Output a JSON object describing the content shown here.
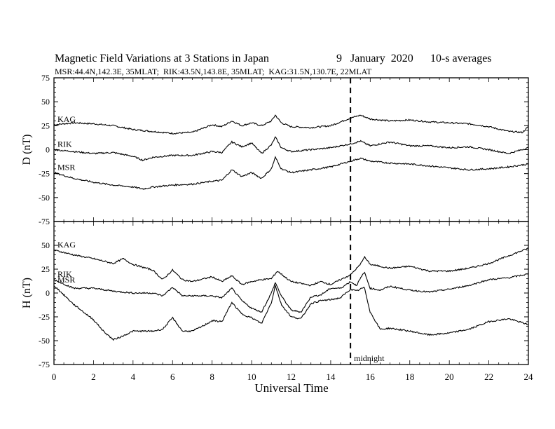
{
  "chart_data": {
    "type": "line",
    "title": "Magnetic Field Variations at 3 Stations in Japan",
    "date": "9   January  2020",
    "averaging": "10-s averages",
    "stations_line": "MSR:44.4N,142.3E, 35MLAT;  RIK:43.5N,143.8E, 35MLAT;  KAG:31.5N,130.7E, 22MLAT",
    "xlabel": "Universal Time",
    "xlim": [
      0,
      24
    ],
    "x_ticks": [
      0,
      2,
      4,
      6,
      8,
      10,
      12,
      14,
      16,
      18,
      20,
      22,
      24
    ],
    "marker": {
      "x": 15,
      "label": "midnight"
    },
    "panels": [
      {
        "ylabel": "D (nT)",
        "ylim": [
          -75,
          75
        ],
        "y_ticks": [
          75,
          50,
          25,
          0,
          -25,
          -50,
          -75
        ],
        "series": [
          {
            "name": "KAG",
            "x": [
              0,
              1,
              2,
              3,
              4,
              5,
              6,
              7,
              7.5,
              8,
              8.5,
              9,
              9.5,
              10,
              10.5,
              11,
              11.2,
              11.5,
              12,
              13,
              14,
              14.5,
              15,
              15.5,
              16,
              17,
              18,
              19,
              20,
              21,
              22,
              23,
              23.7,
              24
            ],
            "y": [
              26,
              28,
              27,
              25,
              21,
              19,
              17,
              18,
              22,
              26,
              24,
              30,
              25,
              28,
              25,
              30,
              36,
              28,
              24,
              23,
              25,
              29,
              33,
              36,
              32,
              30,
              31,
              29,
              28,
              27,
              24,
              19,
              18,
              24
            ]
          },
          {
            "name": "RIK",
            "x": [
              0,
              1,
              2,
              3,
              4,
              4.5,
              5,
              6,
              7,
              8,
              8.5,
              9,
              9.5,
              10,
              10.5,
              11,
              11.2,
              11.5,
              12,
              13,
              14,
              14.5,
              15,
              15.5,
              16,
              17,
              18,
              19,
              20,
              21,
              22,
              23,
              24
            ],
            "y": [
              0,
              -2,
              -4,
              -3,
              -7,
              -11,
              -8,
              -6,
              -6,
              -2,
              -3,
              8,
              3,
              7,
              -4,
              5,
              13,
              2,
              -2,
              0,
              2,
              4,
              6,
              9,
              4,
              8,
              4,
              4,
              2,
              3,
              0,
              -4,
              2
            ]
          },
          {
            "name": "MSR",
            "x": [
              0,
              1,
              2,
              3,
              4,
              4.5,
              5,
              6,
              7,
              8,
              8.5,
              9,
              9.5,
              10,
              10.5,
              11,
              11.2,
              11.5,
              12,
              13,
              14,
              14.5,
              15,
              15.5,
              16,
              17,
              18,
              19,
              20,
              21,
              22,
              23,
              24
            ],
            "y": [
              -24,
              -30,
              -34,
              -37,
              -39,
              -41,
              -39,
              -37,
              -36,
              -33,
              -32,
              -21,
              -28,
              -24,
              -30,
              -20,
              -8,
              -20,
              -24,
              -21,
              -18,
              -15,
              -12,
              -9,
              -12,
              -14,
              -15,
              -17,
              -19,
              -21,
              -20,
              -18,
              -15
            ]
          }
        ]
      },
      {
        "ylabel": "H (nT)",
        "ylim": [
          -75,
          75
        ],
        "y_ticks": [
          75,
          50,
          25,
          0,
          -25,
          -50,
          -75
        ],
        "series": [
          {
            "name": "KAG",
            "x": [
              0,
              1,
              2,
              3,
              3.5,
              4,
              5,
              5.5,
              6,
              6.5,
              7,
              8,
              8.5,
              9,
              9.5,
              10,
              10.5,
              11,
              11.3,
              11.8,
              12,
              13,
              13.5,
              14,
              14.5,
              15,
              15.5,
              15.7,
              16,
              17,
              18,
              19,
              20,
              21,
              22,
              23,
              24
            ],
            "y": [
              45,
              40,
              36,
              31,
              36,
              30,
              24,
              14,
              24,
              14,
              12,
              17,
              12,
              18,
              9,
              12,
              14,
              15,
              23,
              15,
              12,
              8,
              12,
              9,
              14,
              19,
              30,
              38,
              30,
              26,
              28,
              23,
              23,
              26,
              31,
              39,
              47
            ]
          },
          {
            "name": "RIK",
            "x": [
              0,
              1,
              2,
              3,
              4,
              5,
              5.5,
              6,
              6.5,
              7,
              8,
              8.5,
              9,
              9.5,
              10,
              10.5,
              11,
              11.2,
              11.5,
              12,
              12.5,
              13,
              13.5,
              14,
              14.5,
              15,
              15.3,
              15.7,
              16,
              16.5,
              17,
              18,
              19,
              20,
              21,
              22,
              23,
              24
            ],
            "y": [
              14,
              5,
              5,
              2,
              0,
              0,
              -3,
              6,
              -3,
              -3,
              -3,
              -5,
              5,
              -8,
              -16,
              -20,
              0,
              11,
              -3,
              -18,
              -20,
              -4,
              -2,
              5,
              5,
              12,
              8,
              22,
              5,
              3,
              7,
              3,
              1,
              4,
              8,
              14,
              16,
              20
            ]
          },
          {
            "name": "MSR",
            "x": [
              0,
              0.5,
              1,
              2,
              2.5,
              3,
              3.5,
              4,
              5,
              5.5,
              6,
              6.5,
              7,
              7.5,
              8,
              8.5,
              9,
              9.5,
              10,
              10.5,
              11,
              11.2,
              11.5,
              12,
              12.5,
              13,
              13.5,
              14,
              14.5,
              15,
              15.3,
              15.7,
              16,
              16.5,
              17,
              18,
              19,
              20,
              21,
              22,
              23,
              24
            ],
            "y": [
              8,
              -2,
              -12,
              -28,
              -40,
              -49,
              -45,
              -40,
              -40,
              -38,
              -26,
              -40,
              -40,
              -35,
              -29,
              -30,
              -10,
              -22,
              -26,
              -32,
              -10,
              8,
              -12,
              -25,
              -27,
              -11,
              -8,
              -7,
              -5,
              4,
              2,
              6,
              -20,
              -38,
              -37,
              -40,
              -44,
              -42,
              -38,
              -30,
              -27,
              -33
            ]
          }
        ]
      }
    ]
  }
}
